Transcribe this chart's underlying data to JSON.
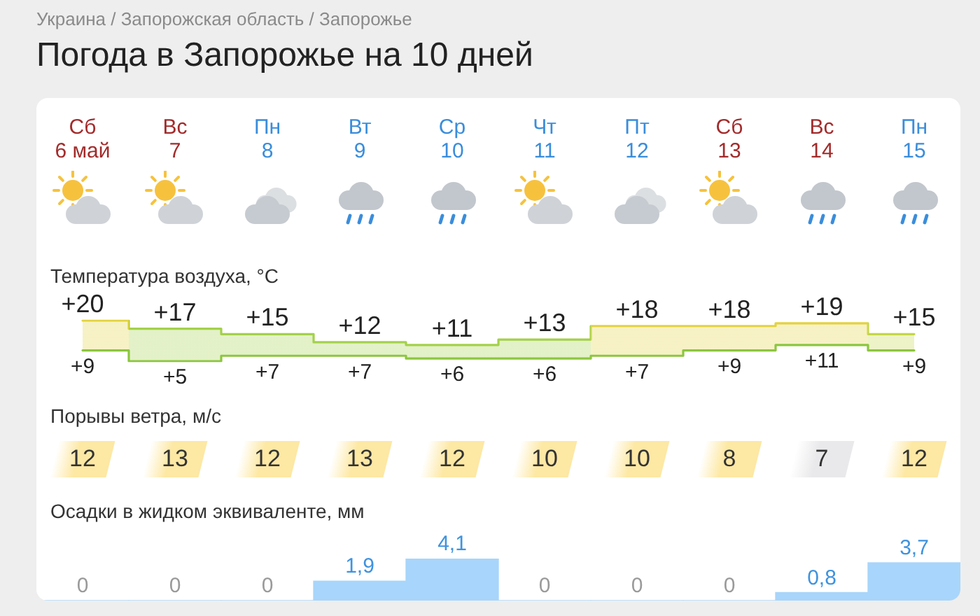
{
  "chart_data": [
    {
      "type": "step",
      "title": "Погода в Запорожье на 10 дней",
      "annotations": [
        "Украина / Запорожская область / Запорожье"
      ],
      "ylabel": "Температура воздуха, °C",
      "categories": [
        "Сб\n6 май",
        "Вс\n7",
        "Пн\n8",
        "Вт\n9",
        "Ср\n10",
        "Чт\n11",
        "Пт\n12",
        "Сб\n13",
        "Вс\n14",
        "Пн\n15"
      ],
      "series": [
        {
          "values": [
            20,
            17,
            15,
            12,
            11,
            13,
            18,
            18,
            19,
            15
          ],
          "value_labels": [
            "+20",
            "+17",
            "+15",
            "+12",
            "+11",
            "+13",
            "+18",
            "+18",
            "+19",
            "+15"
          ],
          "lower": [
            9,
            5,
            7,
            7,
            6,
            6,
            7,
            9,
            11,
            9
          ],
          "upper": [
            20,
            17,
            15,
            12,
            11,
            13,
            18,
            18,
            19,
            15
          ],
          "color": "#a3d14a",
          "colors": [
            "#e3d23e",
            "#a3d14a",
            "#a3d14a",
            "#a3d14a",
            "#a3d14a",
            "#a3d14a",
            "#e3d23e",
            "#e3d23e",
            "#e3d23e",
            "#c4d646"
          ]
        },
        {
          "values": [
            9,
            5,
            7,
            7,
            6,
            6,
            7,
            9,
            11,
            9
          ],
          "value_labels": [
            "+9",
            "+5",
            "+7",
            "+7",
            "+6",
            "+6",
            "+7",
            "+9",
            "+11",
            "+9"
          ],
          "color": "#8cc63f"
        }
      ],
      "tick_labels": "x"
    },
    {
      "type": "other",
      "title": "Порывы ветра, м/с",
      "values": [
        12,
        13,
        12,
        13,
        12,
        10,
        10,
        8,
        7,
        12
      ],
      "colors": [
        "#fde8a4",
        "#fde8a4",
        "#fde8a4",
        "#fde8a4",
        "#fde8a4",
        "#fde8a4",
        "#fde8a4",
        "#fde8a4",
        "#e9e9eb",
        "#fde8a4"
      ],
      "data_labels": true
    },
    {
      "type": "bar",
      "title": "Осадки в жидком эквиваленте, мм",
      "categories": [
        null,
        null,
        null,
        null,
        null,
        null,
        null,
        null,
        null,
        null
      ],
      "values": [
        0,
        0,
        0,
        1.9,
        4.1,
        0,
        0,
        0,
        0.8,
        3.7
      ],
      "value_labels": [
        "0",
        "0",
        "0",
        "1,9",
        "4,1",
        "0",
        "0",
        "0",
        "0,8",
        "3,7"
      ],
      "color": "#a8d5fb",
      "tick_labels": false
    }
  ]
}
